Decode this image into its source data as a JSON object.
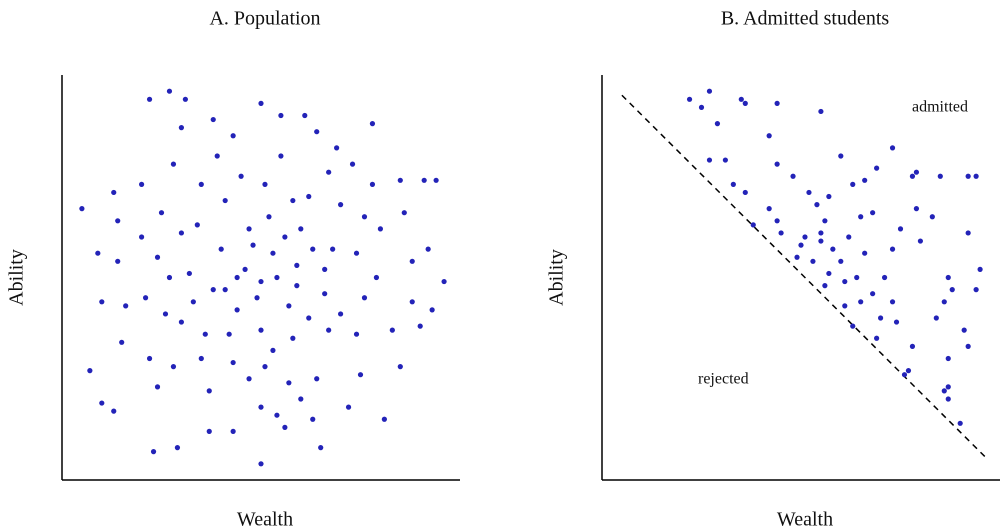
{
  "chart_data": [
    {
      "type": "scatter",
      "title": "A. Population",
      "x_label": "Wealth",
      "y_label": "Ability",
      "color": "#2323b8",
      "xlim": [
        0,
        10
      ],
      "ylim": [
        0,
        10
      ],
      "x": [
        0.5,
        0.9,
        1.0,
        0.7,
        1.0,
        1.3,
        1.5,
        1.4,
        1.4,
        1.6,
        2.0,
        2.1,
        2.2,
        2.2,
        2.7,
        3.1,
        3.0,
        2.8,
        2.5,
        2.4,
        2.6,
        2.4,
        2.3,
        2.9,
        2.8,
        3.0,
        3.2,
        3.4,
        3.5,
        3.8,
        3.9,
        4.1,
        4.0,
        3.8,
        3.6,
        3.7,
        3.7,
        4.3,
        4.3,
        4.4,
        4.6,
        4.7,
        4.5,
        4.3,
        5.0,
        5.5,
        5.5,
        5.1,
        5.2,
        5.3,
        5.0,
        5.0,
        5.1,
        5.0,
        5.0,
        5.6,
        5.7,
        5.8,
        5.7,
        5.9,
        6.0,
        6.2,
        6.7,
        6.4,
        6.1,
        6.9,
        7.0,
        6.8,
        6.6,
        6.7,
        6.4,
        6.3,
        6.5,
        7.2,
        7.5,
        7.4,
        7.6,
        7.4,
        7.6,
        7.8,
        7.8,
        8.0,
        7.9,
        8.3,
        8.5,
        8.1,
        8.6,
        8.5,
        8.8,
        8.8,
        9.1,
        9.3,
        9.0,
        9.2,
        9.6,
        9.4,
        4.9,
        5.4,
        4.8,
        5.6,
        4.4,
        5.9,
        6.2,
        4.2,
        3.3,
        6.6,
        5.3,
        4.7,
        5.4,
        2.0,
        1.3,
        3.0,
        7.3,
        6.3,
        4.1,
        5.8,
        2.7,
        7.0,
        3.5,
        6.0
      ],
      "values": [
        6.7,
        5.6,
        4.4,
        2.7,
        1.9,
        1.7,
        3.4,
        5.4,
        6.4,
        4.3,
        6.0,
        4.5,
        3.0,
        9.4,
        9.6,
        9.4,
        8.7,
        7.8,
        6.6,
        5.5,
        4.1,
        2.3,
        0.7,
        0.8,
        2.8,
        3.9,
        5.1,
        6.3,
        7.3,
        8.9,
        8.0,
        6.9,
        5.7,
        4.7,
        3.6,
        2.2,
        1.2,
        1.2,
        2.9,
        4.2,
        5.2,
        6.2,
        7.5,
        8.5,
        9.3,
        9.0,
        8.0,
        7.3,
        6.5,
        5.6,
        4.9,
        3.7,
        2.8,
        1.8,
        0.4,
        1.3,
        2.4,
        3.5,
        4.3,
        5.3,
        6.2,
        7.0,
        7.6,
        8.6,
        9.0,
        8.2,
        6.8,
        5.7,
        4.6,
        3.7,
        2.5,
        1.5,
        0.8,
        1.8,
        2.6,
        3.6,
        4.5,
        5.6,
        6.5,
        7.3,
        8.8,
        6.2,
        5.0,
        3.7,
        2.8,
        1.5,
        6.6,
        7.4,
        5.4,
        4.4,
        7.4,
        4.2,
        3.8,
        5.7,
        4.9,
        7.4,
        4.5,
        5.0,
        5.8,
        6.0,
        5.0,
        4.8,
        4.0,
        3.6,
        4.4,
        5.2,
        3.2,
        2.5,
        1.6,
        7.3,
        7.1,
        6.1,
        7.8,
        5.7,
        4.7,
        6.9,
        5.0,
        4.1,
        3.0,
        2.0
      ]
    },
    {
      "type": "scatter",
      "title": "B. Admitted students",
      "x_label": "Wealth",
      "y_label": "Ability",
      "color": "#2323b8",
      "xlim": [
        0,
        10
      ],
      "ylim": [
        0,
        10
      ],
      "annotations": [
        "admitted",
        "rejected"
      ],
      "reference_line": {
        "x": [
          0.5,
          9.7
        ],
        "y": [
          9.5,
          0.5
        ]
      },
      "x": [
        2.2,
        2.7,
        2.5,
        3.5,
        3.6,
        2.9,
        4.4,
        5.5,
        4.2,
        2.7,
        3.1,
        4.4,
        3.3,
        3.6,
        4.8,
        5.2,
        4.2,
        4.4,
        3.8,
        4.5,
        5.4,
        5.7,
        5.6,
        5.0,
        5.1,
        5.3,
        4.9,
        5.5,
        6.0,
        5.7,
        6.2,
        6.5,
        6.8,
        6.3,
        6.9,
        7.3,
        6.0,
        6.6,
        7.8,
        7.9,
        8.5,
        9.2,
        9.4,
        7.9,
        8.0,
        8.3,
        9.2,
        7.3,
        7.1,
        6.8,
        6.5,
        7.0,
        7.3,
        6.1,
        6.3,
        6.9,
        7.4,
        7.8,
        8.4,
        8.6,
        8.8,
        9.4,
        8.7,
        9.1,
        9.2,
        7.6,
        7.7,
        8.6,
        8.7,
        8.7,
        9.0,
        8.7,
        9.5,
        6.1,
        6.6,
        7.5,
        5.8,
        5.6,
        6.4,
        5.5
      ],
      "values": [
        9.4,
        9.6,
        9.2,
        9.4,
        9.3,
        8.8,
        9.3,
        9.1,
        8.5,
        7.9,
        7.9,
        7.8,
        7.3,
        7.1,
        7.5,
        7.1,
        6.7,
        6.4,
        6.3,
        6.1,
        6.8,
        7.0,
        6.4,
        5.8,
        6.0,
        5.4,
        5.5,
        5.9,
        5.4,
        5.1,
        6.0,
        6.5,
        6.6,
        7.3,
        7.7,
        8.2,
        8.0,
        7.4,
        7.5,
        7.6,
        7.5,
        7.5,
        7.5,
        6.7,
        5.9,
        6.5,
        6.1,
        5.7,
        5.0,
        4.6,
        4.4,
        4.0,
        4.4,
        4.3,
        3.8,
        3.5,
        3.9,
        3.3,
        4.0,
        4.4,
        4.7,
        4.7,
        3.0,
        3.7,
        3.3,
        2.6,
        2.7,
        2.2,
        2.3,
        2.0,
        1.4,
        5.0,
        5.2,
        4.9,
        5.6,
        6.2,
        5.7,
        4.8,
        5.0,
        6.1
      ]
    }
  ]
}
